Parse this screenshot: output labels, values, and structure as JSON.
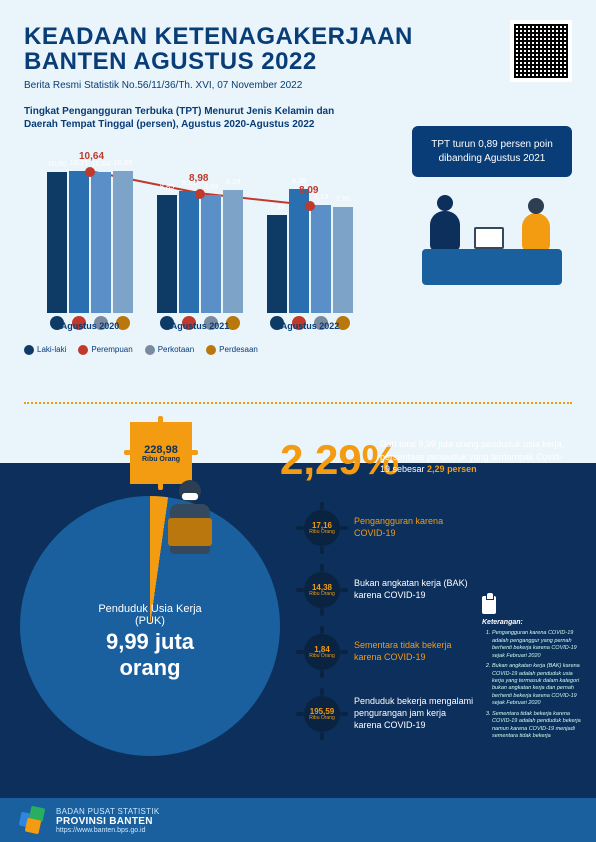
{
  "header": {
    "title_line1": "KEADAAN KETENAGAKERJAAN",
    "title_line2": "BANTEN AGUSTUS 2022",
    "subtitle": "Berita Resmi Statistik No.56/11/36/Th. XVI, 07 November 2022"
  },
  "chart": {
    "title": "Tingkat Pengangguran Terbuka (TPT) Menurut Jenis Kelamin dan Daerah Tempat Tinggal (persen), Agustus 2020-Agustus 2022",
    "type": "grouped-bar-with-line",
    "ylim": [
      0,
      12
    ],
    "groups": [
      {
        "label": "Agustus 2020",
        "bars": [
          10.6,
          10.71,
          10.64,
          10.65
        ],
        "line": 10.64
      },
      {
        "label": "Agustus 2021",
        "bars": [
          8.85,
          9.21,
          8.89,
          9.24
        ],
        "line": 8.98
      },
      {
        "label": "Agustus 2022",
        "bars": [
          7.39,
          9.35,
          8.13,
          7.95
        ],
        "line": 8.09
      }
    ],
    "bar_colors": [
      "#0d3b66",
      "#2a6fb0",
      "#5b8fc7",
      "#7da3c9"
    ],
    "line_color": "#c0392b",
    "legend": [
      {
        "label": "Laki-laki",
        "color": "#0d3b66"
      },
      {
        "label": "Perempuan",
        "color": "#c0392b"
      },
      {
        "label": "Perkotaan",
        "color": "#7a8aa0"
      },
      {
        "label": "Perdesaan",
        "color": "#b9770e"
      }
    ]
  },
  "callout": {
    "text": "TPT turun 0,89 persen poin dibanding Agustus 2021"
  },
  "bottom": {
    "affected_value": "228,98",
    "affected_unit": "Ribu Orang",
    "pct": "2,29",
    "pct_symbol": "%",
    "pct_desc_pre": "Dari total 9,99 juta orang penduduk usia kerja, persentase penduduk yang terdampak Covid-19 sebesar",
    "pct_desc_hl": "2,29 persen",
    "pie_label": "Penduduk Usia Kerja (PUK)",
    "pie_value": "9,99 juta orang",
    "breakdown": [
      {
        "value": "17,16",
        "unit": "Ribu Orang",
        "label": "Pengangguran karena COVID-19",
        "color": "#f39c12"
      },
      {
        "value": "14,38",
        "unit": "Ribu Orang",
        "label": "Bukan angkatan kerja (BAK) karena COVID-19",
        "color": "#ffffff"
      },
      {
        "value": "1,84",
        "unit": "Ribu Orang",
        "label": "Sementara tidak bekerja karena COVID-19",
        "color": "#f39c12"
      },
      {
        "value": "195,59",
        "unit": "Ribu Orang",
        "label": "Penduduk bekerja mengalami pengurangan jam kerja karena COVID-19",
        "color": "#ffffff"
      }
    ]
  },
  "notes": {
    "heading": "Keterangan:",
    "items": [
      "Pengangguran karena COVID-19 adalah penganggur yang pernah berhenti bekerja karena COVID-19 sejak Februari 2020",
      "Bukan angkatan kerja (BAK) karena COVID-19 adalah penduduk usia kerja yang termasuk dalam kategori bukan angkatan kerja dan pernah berhenti bekerja karena COVID-19 sejak Februari 2020",
      "Sementara tidak bekerja karena COVID-19 adalah penduduk bekerja namun karena COVID-19 menjadi sementara tidak bekerja"
    ]
  },
  "footer": {
    "org_line1": "BADAN PUSAT STATISTIK",
    "org_line2": "PROVINSI BANTEN",
    "url": "https://www.banten.bps.go.id"
  },
  "colors": {
    "bg_top": "#eaf4fb",
    "bg_bottom": "#0c2f5c",
    "accent": "#f39c12",
    "primary": "#083d77"
  }
}
